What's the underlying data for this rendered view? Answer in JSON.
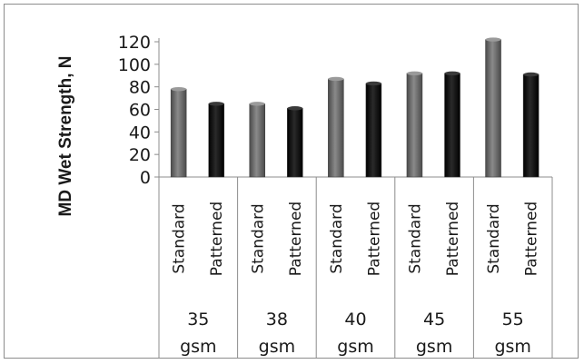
{
  "chart_data": {
    "type": "bar",
    "title": "",
    "ylabel": "MD Wet Strength, N",
    "xlabel": "",
    "ylim": [
      0,
      120
    ],
    "yticks": [
      0,
      20,
      40,
      60,
      80,
      100,
      120
    ],
    "grid": false,
    "legend": "none",
    "groups": [
      {
        "value": "35",
        "unit": "gsm"
      },
      {
        "value": "38",
        "unit": "gsm"
      },
      {
        "value": "40",
        "unit": "gsm"
      },
      {
        "value": "45",
        "unit": "gsm"
      },
      {
        "value": "55",
        "unit": "gsm"
      }
    ],
    "series": [
      {
        "name": "Standard",
        "color": "#6b6b6b",
        "values": [
          78,
          65,
          87,
          92,
          122
        ]
      },
      {
        "name": "Patterned",
        "color": "#111111",
        "values": [
          65,
          61,
          83,
          92,
          91
        ]
      }
    ]
  }
}
